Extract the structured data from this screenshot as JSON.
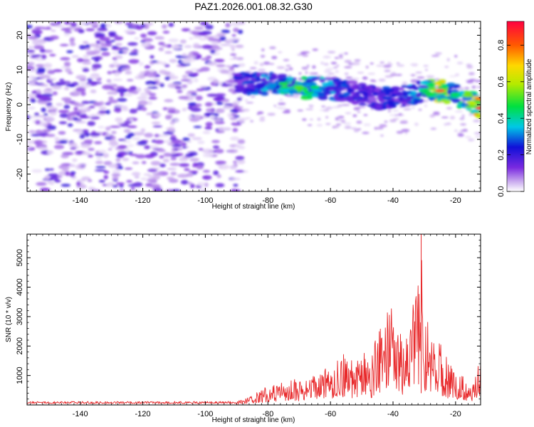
{
  "title": "PAZ1.2026.001.08.32.G30",
  "colors": {
    "snr_line": "#e8282a",
    "background": "#ffffff",
    "frame": "#000000"
  },
  "chart_data": [
    {
      "type": "heatmap",
      "xlabel": "Height of straight line (km)",
      "ylabel": "Frequency (Hz)",
      "xlim": [
        -157,
        -12
      ],
      "ylim": [
        -25,
        24
      ],
      "xticks": [
        -140,
        -120,
        -100,
        -80,
        -60,
        -40,
        -20
      ],
      "yticks": [
        -20,
        -10,
        0,
        10,
        20
      ],
      "colorbar": {
        "label": "Normalized spectral amplitude",
        "range": [
          0,
          0.93
        ],
        "ticks": [
          0.0,
          0.2,
          0.4,
          0.6,
          0.8
        ]
      },
      "ridge": {
        "x": [
          -90,
          -85,
          -80,
          -75,
          -70,
          -65,
          -60,
          -55,
          -50,
          -45,
          -40,
          -35,
          -30,
          -25,
          -20,
          -15,
          -12
        ],
        "frequency": [
          6,
          6,
          6,
          6,
          5,
          5,
          4.5,
          4,
          3,
          2,
          2,
          2.5,
          4,
          4,
          3,
          0.5,
          -1
        ],
        "amplitude": [
          0.28,
          0.32,
          0.38,
          0.48,
          0.52,
          0.45,
          0.35,
          0.3,
          0.26,
          0.27,
          0.3,
          0.35,
          0.45,
          0.8,
          0.45,
          0.6,
          0.93
        ]
      },
      "noise_region": {
        "x_range": [
          -157,
          -88
        ],
        "frequency_range": [
          -25,
          24
        ],
        "amplitude_range": [
          0.02,
          0.22
        ]
      }
    },
    {
      "type": "line",
      "xlabel": "Height of straight line (km)",
      "ylabel": "SNR (10 * v/v)",
      "xlim": [
        -157,
        -12
      ],
      "ylim": [
        0,
        5800
      ],
      "xticks": [
        -140,
        -120,
        -100,
        -80,
        -60,
        -40,
        -20
      ],
      "yticks": [
        1000,
        2000,
        3000,
        4000,
        5000
      ],
      "envelope_x": [
        -157,
        -100,
        -90,
        -85,
        -80,
        -75,
        -70,
        -65,
        -60,
        -55,
        -52,
        -50,
        -47,
        -45,
        -42,
        -40,
        -37,
        -35,
        -32,
        -31,
        -30,
        -28,
        -25,
        -22,
        -20,
        -17,
        -15,
        -13,
        -12
      ],
      "envelope_y": [
        120,
        120,
        130,
        350,
        650,
        800,
        900,
        1050,
        1350,
        1800,
        1400,
        1900,
        1500,
        2700,
        3300,
        3700,
        2200,
        2600,
        4500,
        5800,
        3300,
        2400,
        2300,
        1400,
        1100,
        950,
        600,
        1300,
        1500
      ]
    }
  ]
}
